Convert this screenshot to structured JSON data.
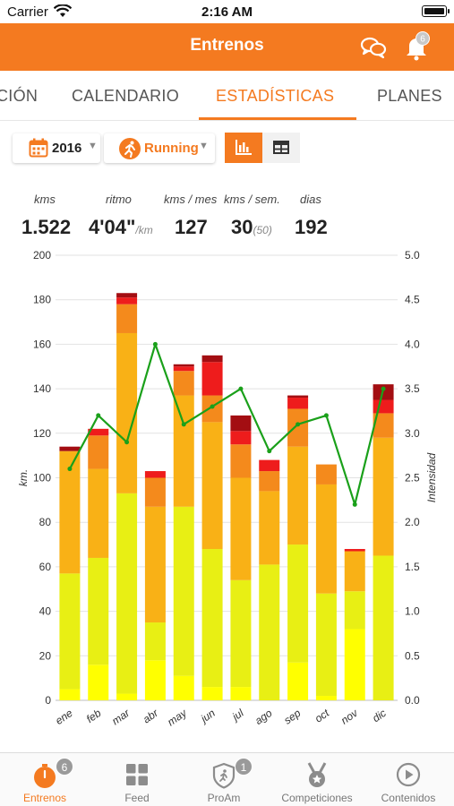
{
  "status_bar": {
    "carrier": "Carrier",
    "time": "2:16 AM"
  },
  "header": {
    "title": "Entrenos",
    "notification_count": "6"
  },
  "tabs": [
    {
      "label": "CIÓN"
    },
    {
      "label": "CALENDARIO"
    },
    {
      "label": "ESTADÍSTICAS",
      "active": true
    },
    {
      "label": "PLANES"
    }
  ],
  "filters": {
    "year": "2016",
    "sport": "Running"
  },
  "stats": {
    "kms": {
      "label": "kms",
      "value": "1.522"
    },
    "pace": {
      "label": "ritmo",
      "value": "4'04\"",
      "unit": "/km"
    },
    "kms_month": {
      "label": "kms / mes",
      "value": "127"
    },
    "kms_week": {
      "label": "kms / sem.",
      "value": "30",
      "extra": "(50)"
    },
    "days": {
      "label": "dias",
      "value": "192"
    }
  },
  "colors": {
    "brand": "#f47a20"
  },
  "chart_data": {
    "type": "bar",
    "stacked": true,
    "categories": [
      "ene",
      "feb",
      "mar",
      "abr",
      "may",
      "jun",
      "jul",
      "ago",
      "sep",
      "oct",
      "nov",
      "dic"
    ],
    "ylabel": "km.",
    "ylabel_right": "Intensidad",
    "ylim": [
      0,
      200
    ],
    "yticks": [
      0,
      20,
      40,
      60,
      80,
      100,
      120,
      140,
      160,
      180,
      200
    ],
    "y2lim": [
      0,
      5
    ],
    "y2ticks": [
      "0.0",
      "0.5",
      "1.0",
      "1.5",
      "2.0",
      "2.5",
      "3.0",
      "3.5",
      "4.0",
      "4.5",
      "5.0"
    ],
    "grid": true,
    "series": [
      {
        "color": "#ffff00",
        "values": [
          5,
          16,
          3,
          18,
          11,
          6,
          6,
          0,
          17,
          2,
          32,
          0
        ]
      },
      {
        "color": "#e8ef14",
        "values": [
          52,
          48,
          90,
          17,
          76,
          62,
          48,
          61,
          53,
          46,
          17,
          65
        ]
      },
      {
        "color": "#f9b116",
        "values": [
          55,
          40,
          72,
          52,
          50,
          57,
          46,
          33,
          44,
          49,
          18,
          53
        ]
      },
      {
        "color": "#f48a1c",
        "values": [
          0,
          15,
          13,
          13,
          11,
          12,
          15,
          9,
          17,
          9,
          0,
          11
        ]
      },
      {
        "color": "#ee1c1c",
        "values": [
          0,
          3,
          3,
          3,
          2,
          15,
          6,
          5,
          5,
          0,
          1,
          6
        ]
      },
      {
        "color": "#a30e12",
        "values": [
          2,
          0,
          2,
          0,
          1,
          3,
          7,
          0,
          1,
          0,
          0,
          7
        ]
      }
    ],
    "line": {
      "color": "#1aa01a",
      "values": [
        2.6,
        3.2,
        2.9,
        4.0,
        3.1,
        3.3,
        3.5,
        2.8,
        3.1,
        3.2,
        2.2,
        3.5
      ]
    }
  },
  "tabbar": [
    {
      "label": "Entrenos",
      "badge": "6",
      "active": true
    },
    {
      "label": "Feed"
    },
    {
      "label": "ProAm",
      "badge": "1"
    },
    {
      "label": "Competiciones"
    },
    {
      "label": "Contenidos"
    }
  ]
}
